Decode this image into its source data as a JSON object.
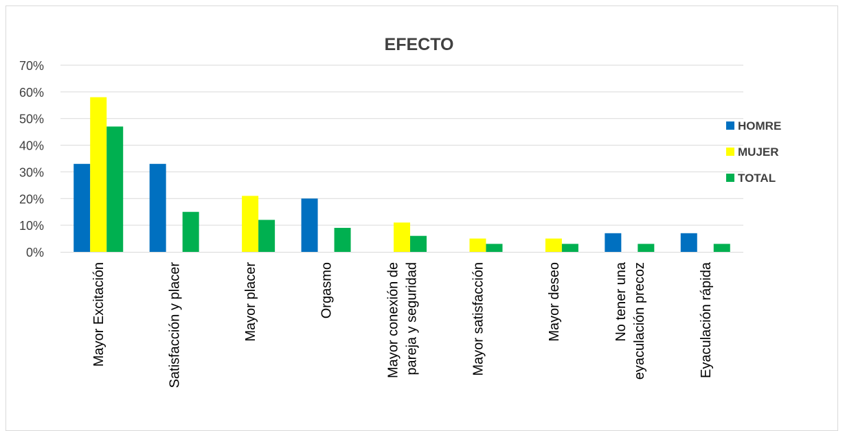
{
  "chart_data": {
    "type": "bar",
    "title": "EFECTO",
    "xlabel": "",
    "ylabel": "",
    "ylim": [
      0,
      0.7
    ],
    "yticks": [
      "0%",
      "10%",
      "20%",
      "30%",
      "40%",
      "50%",
      "60%",
      "70%"
    ],
    "grid": true,
    "legend_position": "right",
    "categories": [
      [
        "Mayor Excitación"
      ],
      [
        "Satisfacción y placer"
      ],
      [
        "Mayor placer"
      ],
      [
        "Orgasmo"
      ],
      [
        "Mayor conexión de",
        "pareja  y seguridad"
      ],
      [
        "Mayor satisfacción"
      ],
      [
        "Mayor deseo"
      ],
      [
        "No tener una",
        "eyaculación precoz"
      ],
      [
        "Eyaculación rápida"
      ]
    ],
    "series": [
      {
        "name": "HOMRE",
        "color": "#0070c0",
        "values": [
          0.33,
          0.33,
          0,
          0.2,
          0,
          0,
          0,
          0.07,
          0.07
        ]
      },
      {
        "name": "MUJER",
        "color": "#ffff00",
        "values": [
          0.58,
          0,
          0.21,
          0,
          0.11,
          0.05,
          0.05,
          0,
          0
        ]
      },
      {
        "name": "TOTAL",
        "color": "#00b050",
        "values": [
          0.47,
          0.15,
          0.12,
          0.09,
          0.06,
          0.03,
          0.03,
          0.03,
          0.03
        ]
      }
    ]
  }
}
